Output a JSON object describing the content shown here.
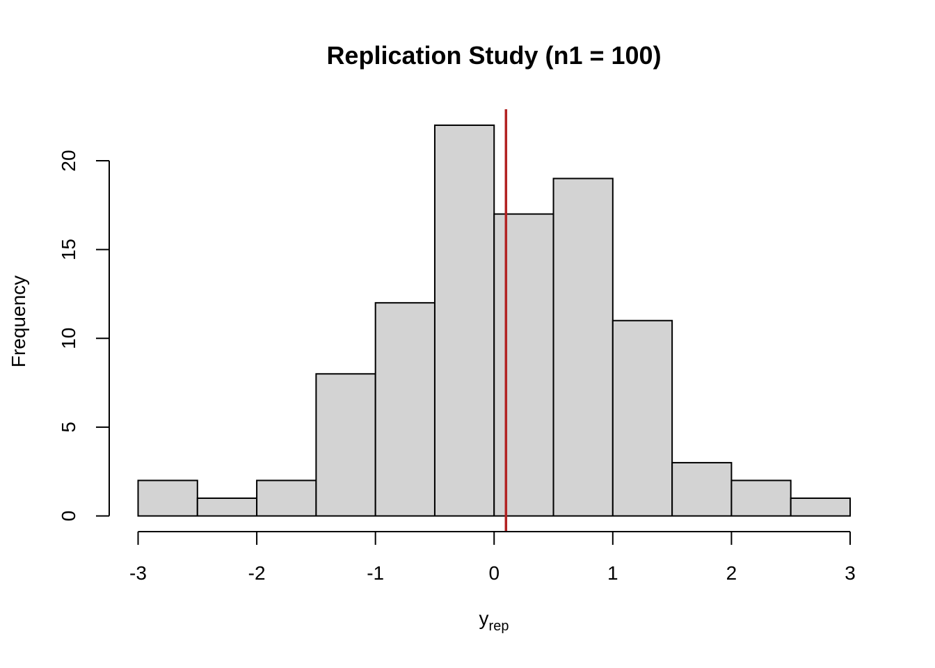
{
  "chart_data": {
    "type": "bar",
    "title": "Replication Study (n1 = 100)",
    "xlabel": {
      "base": "y",
      "subscript": "rep"
    },
    "ylabel": "Frequency",
    "bins": [
      {
        "start": -3.0,
        "end": -2.5,
        "count": 2
      },
      {
        "start": -2.5,
        "end": -2.0,
        "count": 1
      },
      {
        "start": -2.0,
        "end": -1.5,
        "count": 2
      },
      {
        "start": -1.5,
        "end": -1.0,
        "count": 8
      },
      {
        "start": -1.0,
        "end": -0.5,
        "count": 12
      },
      {
        "start": -0.5,
        "end": 0.0,
        "count": 22
      },
      {
        "start": 0.0,
        "end": 0.5,
        "count": 17
      },
      {
        "start": 0.5,
        "end": 1.0,
        "count": 19
      },
      {
        "start": 1.0,
        "end": 1.5,
        "count": 11
      },
      {
        "start": 1.5,
        "end": 2.0,
        "count": 3
      },
      {
        "start": 2.0,
        "end": 2.5,
        "count": 2
      },
      {
        "start": 2.5,
        "end": 3.0,
        "count": 1
      }
    ],
    "xlim": [
      -3,
      3
    ],
    "ylim": [
      0,
      22
    ],
    "xticks": [
      -3,
      -2,
      -1,
      0,
      1,
      2,
      3
    ],
    "xtick_labels": [
      "-3",
      "-2",
      "-1",
      "0",
      "1",
      "2",
      "3"
    ],
    "yticks": [
      0,
      5,
      10,
      15,
      20
    ],
    "ytick_labels": [
      "0",
      "5",
      "10",
      "15",
      "20"
    ],
    "reference_line": {
      "x": 0.1,
      "color": "#b22222"
    },
    "bar_fill": "#d3d3d3",
    "bar_stroke": "#000000",
    "grid": false
  }
}
